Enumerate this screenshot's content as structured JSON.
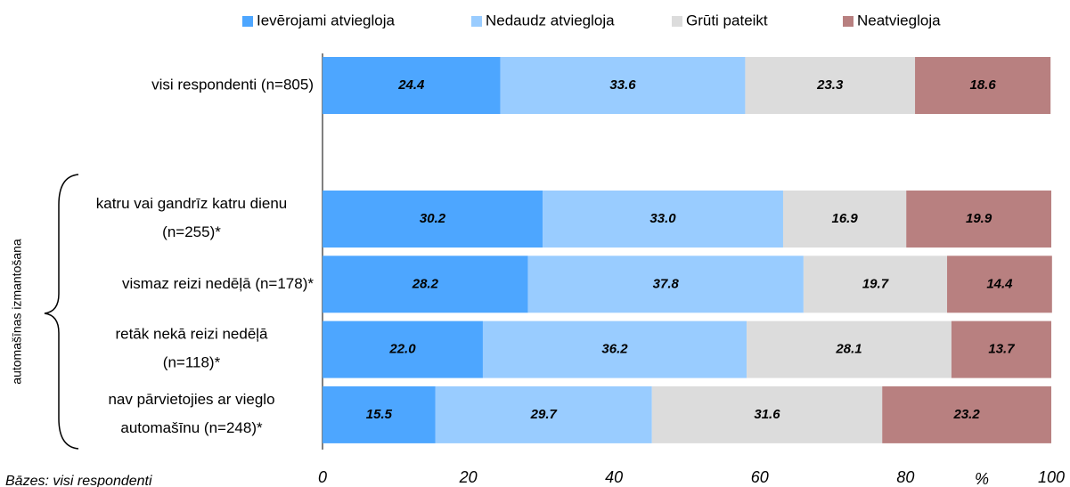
{
  "chart_data": {
    "type": "stacked_bar_horizontal",
    "categories": [
      "visi respondenti (n=805)",
      "katru vai gandrīz katru dienu\n(n=255)*",
      "vismaz reizi nedēļā (n=178)*",
      "retāk nekā reizi nedēļā\n(n=118)*",
      "nav pārvietojies ar vieglo\nautomašīnu (n=248)*"
    ],
    "series": [
      {
        "name": "Ievērojami atviegloja",
        "color": "#4da6ff",
        "values": [
          24.4,
          30.2,
          28.2,
          22.0,
          15.5
        ],
        "value_labels": [
          "24.4",
          "30.2",
          "28.2",
          "22.0",
          "15.5"
        ]
      },
      {
        "name": "Nedaudz atviegloja",
        "color": "#99ccff",
        "values": [
          33.6,
          33.0,
          37.8,
          36.2,
          29.7
        ],
        "value_labels": [
          "33.6",
          "33.0",
          "37.8",
          "36.2",
          "29.7"
        ]
      },
      {
        "name": "Grūti pateikt",
        "color": "#dcdcdc",
        "values": [
          23.3,
          16.9,
          19.7,
          28.1,
          31.6
        ],
        "value_labels": [
          "23.3",
          "16.9",
          "19.7",
          "28.1",
          "31.6"
        ]
      },
      {
        "name": "Neatviegloja",
        "color": "#b88080",
        "values": [
          18.6,
          19.9,
          14.4,
          13.7,
          23.2
        ],
        "value_labels": [
          "18.6",
          "19.9",
          "14.4",
          "13.7",
          "23.2"
        ]
      }
    ],
    "xlim": [
      0,
      100
    ],
    "xticks": [
      0,
      20,
      40,
      60,
      80,
      100
    ],
    "x_axis_label": "%",
    "group_label": "automašīnas izmantošana",
    "footnote": "Bāzes: visi respondenti",
    "legend": "top"
  }
}
